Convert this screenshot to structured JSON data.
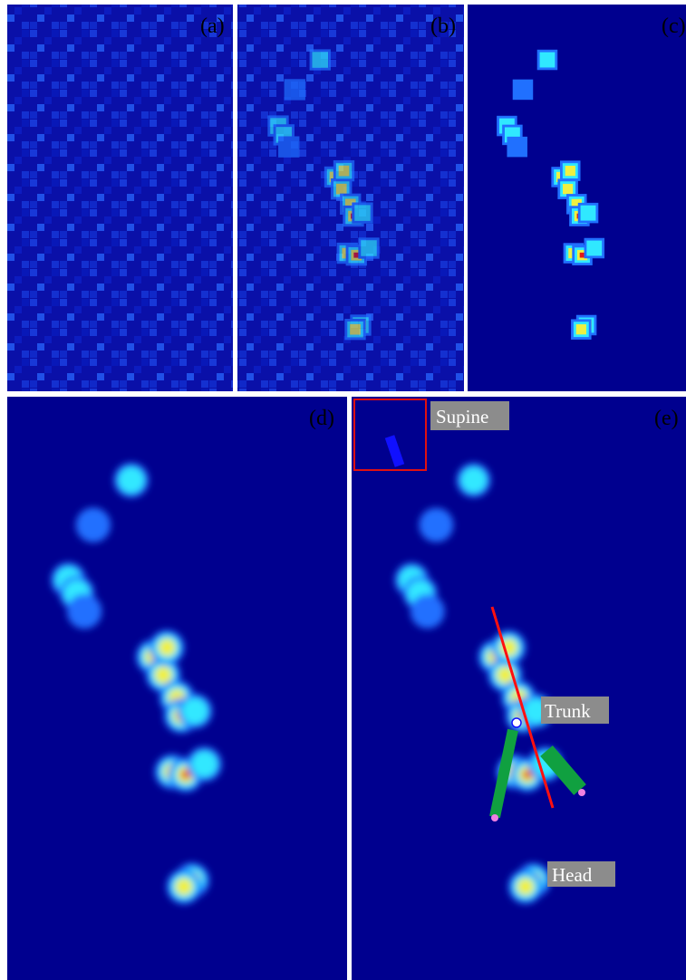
{
  "panels": [
    {
      "label": "(a)"
    },
    {
      "label": "(b)"
    },
    {
      "label": "(c)"
    },
    {
      "label": "(d)"
    },
    {
      "label": "(e)"
    }
  ],
  "annotations": {
    "posture": "Supine",
    "trunk": "Trunk",
    "head": "Head"
  }
}
